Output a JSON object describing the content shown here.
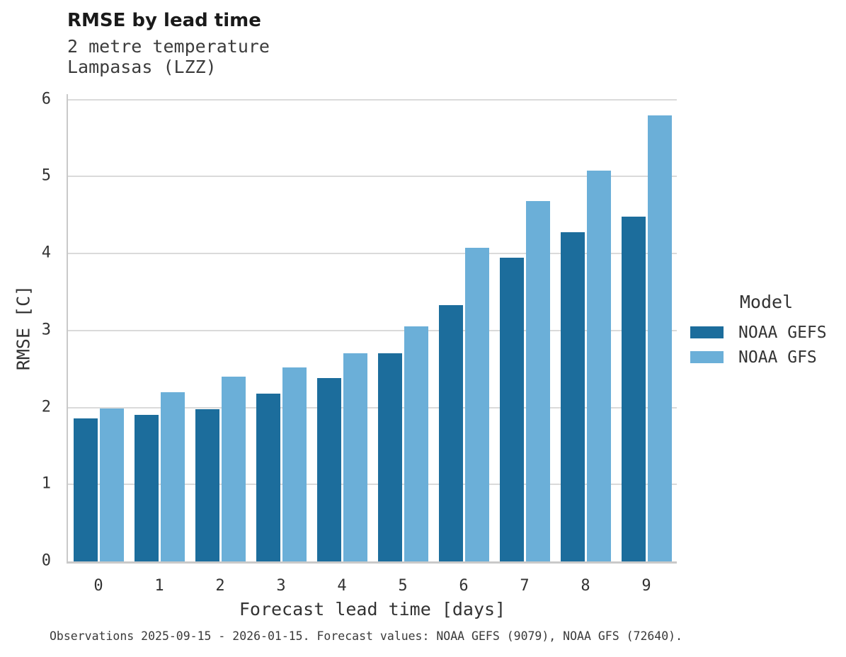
{
  "header": {
    "title": "RMSE by lead time",
    "subtitle_line1": "2 metre temperature",
    "subtitle_line2": "Lampasas (LZZ)"
  },
  "caption": "Observations 2025-09-15 - 2026-01-15. Forecast values: NOAA GEFS (9079), NOAA GFS (72640).",
  "legend": {
    "title": "Model",
    "entries": [
      {
        "label": "NOAA GEFS",
        "color": "#1C6D9C"
      },
      {
        "label": "NOAA GFS",
        "color": "#6BAFD8"
      }
    ]
  },
  "colors": {
    "bar_dark": "#1C6D9C",
    "bar_light": "#6BAFD8",
    "gridline": "#DADADA",
    "spine": "#C9C9C9",
    "text": "#333333"
  },
  "chart_data": {
    "type": "bar",
    "title": "RMSE by lead time",
    "subtitle": [
      "2 metre temperature",
      "Lampasas (LZZ)"
    ],
    "categories": [
      "0",
      "1",
      "2",
      "3",
      "4",
      "5",
      "6",
      "7",
      "8",
      "9"
    ],
    "series": [
      {
        "name": "NOAA GEFS",
        "color": "#1C6D9C",
        "values": [
          1.86,
          1.9,
          1.98,
          2.18,
          2.38,
          2.7,
          3.33,
          3.95,
          4.28,
          4.48
        ]
      },
      {
        "name": "NOAA GFS",
        "color": "#6BAFD8",
        "values": [
          1.99,
          2.2,
          2.4,
          2.52,
          2.7,
          3.05,
          4.07,
          4.68,
          5.08,
          5.79
        ]
      }
    ],
    "xlabel": "Forecast lead time [days]",
    "ylabel": "RMSE [C]",
    "ylim": [
      0,
      6.07
    ],
    "yticks": [
      0,
      1,
      2,
      3,
      4,
      5,
      6
    ],
    "grid": true,
    "legend_title": "Model",
    "legend_position": "right-center"
  }
}
